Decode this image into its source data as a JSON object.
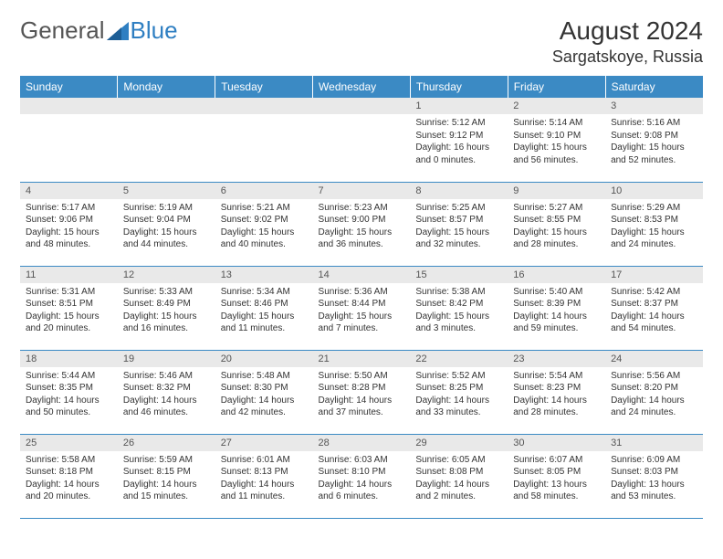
{
  "brand": {
    "part1": "General",
    "part2": "Blue"
  },
  "title": "August 2024",
  "location": "Sargatskoye, Russia",
  "colors": {
    "header_bg": "#3b8ac4",
    "daynum_bg": "#e9e9e9",
    "text": "#333333"
  },
  "weekdays": [
    "Sunday",
    "Monday",
    "Tuesday",
    "Wednesday",
    "Thursday",
    "Friday",
    "Saturday"
  ],
  "weeks": [
    [
      null,
      null,
      null,
      null,
      {
        "n": "1",
        "sr": "Sunrise: 5:12 AM",
        "ss": "Sunset: 9:12 PM",
        "d1": "Daylight: 16 hours",
        "d2": "and 0 minutes."
      },
      {
        "n": "2",
        "sr": "Sunrise: 5:14 AM",
        "ss": "Sunset: 9:10 PM",
        "d1": "Daylight: 15 hours",
        "d2": "and 56 minutes."
      },
      {
        "n": "3",
        "sr": "Sunrise: 5:16 AM",
        "ss": "Sunset: 9:08 PM",
        "d1": "Daylight: 15 hours",
        "d2": "and 52 minutes."
      }
    ],
    [
      {
        "n": "4",
        "sr": "Sunrise: 5:17 AM",
        "ss": "Sunset: 9:06 PM",
        "d1": "Daylight: 15 hours",
        "d2": "and 48 minutes."
      },
      {
        "n": "5",
        "sr": "Sunrise: 5:19 AM",
        "ss": "Sunset: 9:04 PM",
        "d1": "Daylight: 15 hours",
        "d2": "and 44 minutes."
      },
      {
        "n": "6",
        "sr": "Sunrise: 5:21 AM",
        "ss": "Sunset: 9:02 PM",
        "d1": "Daylight: 15 hours",
        "d2": "and 40 minutes."
      },
      {
        "n": "7",
        "sr": "Sunrise: 5:23 AM",
        "ss": "Sunset: 9:00 PM",
        "d1": "Daylight: 15 hours",
        "d2": "and 36 minutes."
      },
      {
        "n": "8",
        "sr": "Sunrise: 5:25 AM",
        "ss": "Sunset: 8:57 PM",
        "d1": "Daylight: 15 hours",
        "d2": "and 32 minutes."
      },
      {
        "n": "9",
        "sr": "Sunrise: 5:27 AM",
        "ss": "Sunset: 8:55 PM",
        "d1": "Daylight: 15 hours",
        "d2": "and 28 minutes."
      },
      {
        "n": "10",
        "sr": "Sunrise: 5:29 AM",
        "ss": "Sunset: 8:53 PM",
        "d1": "Daylight: 15 hours",
        "d2": "and 24 minutes."
      }
    ],
    [
      {
        "n": "11",
        "sr": "Sunrise: 5:31 AM",
        "ss": "Sunset: 8:51 PM",
        "d1": "Daylight: 15 hours",
        "d2": "and 20 minutes."
      },
      {
        "n": "12",
        "sr": "Sunrise: 5:33 AM",
        "ss": "Sunset: 8:49 PM",
        "d1": "Daylight: 15 hours",
        "d2": "and 16 minutes."
      },
      {
        "n": "13",
        "sr": "Sunrise: 5:34 AM",
        "ss": "Sunset: 8:46 PM",
        "d1": "Daylight: 15 hours",
        "d2": "and 11 minutes."
      },
      {
        "n": "14",
        "sr": "Sunrise: 5:36 AM",
        "ss": "Sunset: 8:44 PM",
        "d1": "Daylight: 15 hours",
        "d2": "and 7 minutes."
      },
      {
        "n": "15",
        "sr": "Sunrise: 5:38 AM",
        "ss": "Sunset: 8:42 PM",
        "d1": "Daylight: 15 hours",
        "d2": "and 3 minutes."
      },
      {
        "n": "16",
        "sr": "Sunrise: 5:40 AM",
        "ss": "Sunset: 8:39 PM",
        "d1": "Daylight: 14 hours",
        "d2": "and 59 minutes."
      },
      {
        "n": "17",
        "sr": "Sunrise: 5:42 AM",
        "ss": "Sunset: 8:37 PM",
        "d1": "Daylight: 14 hours",
        "d2": "and 54 minutes."
      }
    ],
    [
      {
        "n": "18",
        "sr": "Sunrise: 5:44 AM",
        "ss": "Sunset: 8:35 PM",
        "d1": "Daylight: 14 hours",
        "d2": "and 50 minutes."
      },
      {
        "n": "19",
        "sr": "Sunrise: 5:46 AM",
        "ss": "Sunset: 8:32 PM",
        "d1": "Daylight: 14 hours",
        "d2": "and 46 minutes."
      },
      {
        "n": "20",
        "sr": "Sunrise: 5:48 AM",
        "ss": "Sunset: 8:30 PM",
        "d1": "Daylight: 14 hours",
        "d2": "and 42 minutes."
      },
      {
        "n": "21",
        "sr": "Sunrise: 5:50 AM",
        "ss": "Sunset: 8:28 PM",
        "d1": "Daylight: 14 hours",
        "d2": "and 37 minutes."
      },
      {
        "n": "22",
        "sr": "Sunrise: 5:52 AM",
        "ss": "Sunset: 8:25 PM",
        "d1": "Daylight: 14 hours",
        "d2": "and 33 minutes."
      },
      {
        "n": "23",
        "sr": "Sunrise: 5:54 AM",
        "ss": "Sunset: 8:23 PM",
        "d1": "Daylight: 14 hours",
        "d2": "and 28 minutes."
      },
      {
        "n": "24",
        "sr": "Sunrise: 5:56 AM",
        "ss": "Sunset: 8:20 PM",
        "d1": "Daylight: 14 hours",
        "d2": "and 24 minutes."
      }
    ],
    [
      {
        "n": "25",
        "sr": "Sunrise: 5:58 AM",
        "ss": "Sunset: 8:18 PM",
        "d1": "Daylight: 14 hours",
        "d2": "and 20 minutes."
      },
      {
        "n": "26",
        "sr": "Sunrise: 5:59 AM",
        "ss": "Sunset: 8:15 PM",
        "d1": "Daylight: 14 hours",
        "d2": "and 15 minutes."
      },
      {
        "n": "27",
        "sr": "Sunrise: 6:01 AM",
        "ss": "Sunset: 8:13 PM",
        "d1": "Daylight: 14 hours",
        "d2": "and 11 minutes."
      },
      {
        "n": "28",
        "sr": "Sunrise: 6:03 AM",
        "ss": "Sunset: 8:10 PM",
        "d1": "Daylight: 14 hours",
        "d2": "and 6 minutes."
      },
      {
        "n": "29",
        "sr": "Sunrise: 6:05 AM",
        "ss": "Sunset: 8:08 PM",
        "d1": "Daylight: 14 hours",
        "d2": "and 2 minutes."
      },
      {
        "n": "30",
        "sr": "Sunrise: 6:07 AM",
        "ss": "Sunset: 8:05 PM",
        "d1": "Daylight: 13 hours",
        "d2": "and 58 minutes."
      },
      {
        "n": "31",
        "sr": "Sunrise: 6:09 AM",
        "ss": "Sunset: 8:03 PM",
        "d1": "Daylight: 13 hours",
        "d2": "and 53 minutes."
      }
    ]
  ]
}
